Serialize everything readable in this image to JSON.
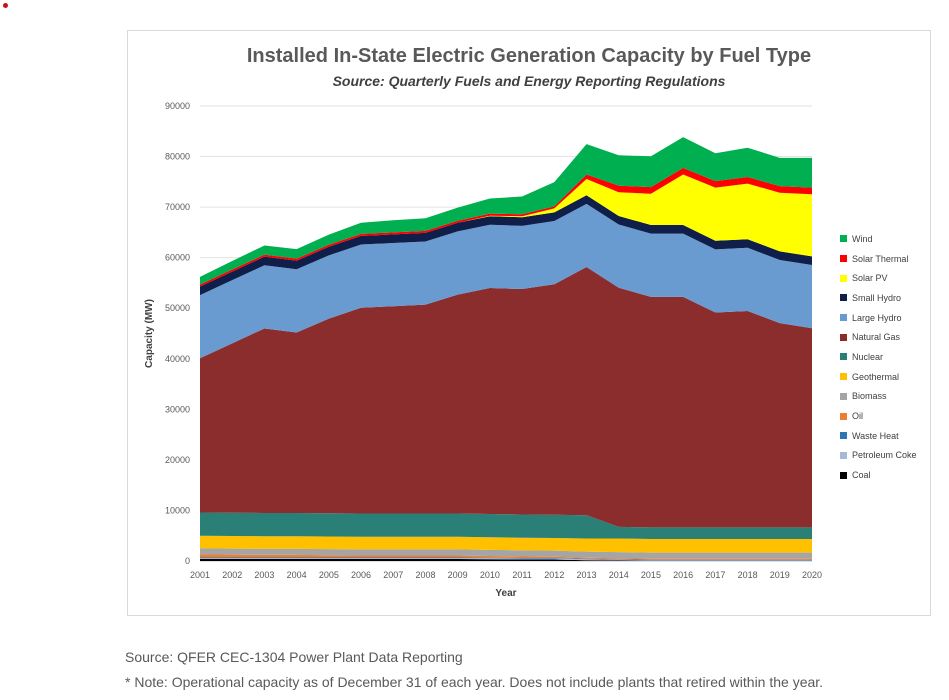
{
  "footer": {
    "source": "Source: QFER CEC-1304 Power Plant Data Reporting",
    "note": "* Note: Operational capacity as of December 31 of each year. Does not include plants that retired within the year."
  },
  "chart_data": {
    "type": "area",
    "stacked": true,
    "title": "Installed In-State Electric Generation Capacity by Fuel Type",
    "subtitle": "Source: Quarterly Fuels and Energy Reporting Regulations",
    "xlabel": "Year",
    "ylabel": "Capacity (MW)",
    "ylim": [
      0,
      90000
    ],
    "yticks": [
      0,
      10000,
      20000,
      30000,
      40000,
      50000,
      60000,
      70000,
      80000,
      90000
    ],
    "grid": "horizontal",
    "legend_position": "right",
    "x": [
      "2001",
      "2002",
      "2003",
      "2004",
      "2005",
      "2006",
      "2007",
      "2008",
      "2009",
      "2010",
      "2011",
      "2012",
      "2013",
      "2014",
      "2015",
      "2016",
      "2017",
      "2018",
      "2019",
      "2020"
    ],
    "series": [
      {
        "name": "Coal",
        "color": "#000000",
        "values": [
          400,
          400,
          400,
          400,
          400,
          400,
          400,
          400,
          400,
          350,
          300,
          300,
          150,
          100,
          50,
          50,
          50,
          50,
          50,
          50
        ]
      },
      {
        "name": "Petroleum Coke",
        "color": "#a6b8d8",
        "values": [
          200,
          200,
          200,
          200,
          200,
          200,
          200,
          200,
          200,
          200,
          200,
          200,
          200,
          150,
          100,
          100,
          100,
          100,
          100,
          100
        ]
      },
      {
        "name": "Waste Heat",
        "color": "#2e75b6",
        "values": [
          100,
          100,
          100,
          100,
          100,
          100,
          100,
          100,
          100,
          100,
          100,
          100,
          100,
          100,
          100,
          100,
          100,
          100,
          100,
          100
        ]
      },
      {
        "name": "Oil",
        "color": "#ed7d31",
        "values": [
          600,
          550,
          500,
          500,
          450,
          400,
          400,
          400,
          400,
          350,
          300,
          250,
          200,
          200,
          200,
          200,
          200,
          200,
          200,
          200
        ]
      },
      {
        "name": "Biomass",
        "color": "#a5a5a5",
        "values": [
          1200,
          1200,
          1200,
          1200,
          1200,
          1200,
          1200,
          1200,
          1200,
          1200,
          1200,
          1200,
          1200,
          1200,
          1200,
          1200,
          1200,
          1200,
          1200,
          1200
        ]
      },
      {
        "name": "Geothermal",
        "color": "#ffc000",
        "values": [
          2500,
          2500,
          2500,
          2500,
          2500,
          2500,
          2500,
          2500,
          2500,
          2500,
          2500,
          2500,
          2600,
          2700,
          2700,
          2700,
          2700,
          2700,
          2700,
          2700
        ]
      },
      {
        "name": "Nuclear",
        "color": "#2a8076",
        "values": [
          4600,
          4600,
          4600,
          4600,
          4600,
          4600,
          4600,
          4600,
          4600,
          4600,
          4600,
          4600,
          4600,
          2300,
          2300,
          2300,
          2300,
          2300,
          2300,
          2300
        ]
      },
      {
        "name": "Natural Gas",
        "color": "#8b2d2d",
        "values": [
          30500,
          33500,
          36500,
          35700,
          38500,
          40700,
          41000,
          41300,
          43300,
          44700,
          44600,
          45600,
          49100,
          47300,
          45600,
          45600,
          42500,
          42800,
          40400,
          39400
        ]
      },
      {
        "name": "Large Hydro",
        "color": "#6a9bd0",
        "values": [
          12500,
          12500,
          12500,
          12500,
          12500,
          12500,
          12500,
          12500,
          12500,
          12500,
          12500,
          12500,
          12500,
          12500,
          12500,
          12500,
          12500,
          12500,
          12500,
          12500
        ]
      },
      {
        "name": "Small Hydro",
        "color": "#0f1f4a",
        "values": [
          1700,
          1700,
          1700,
          1700,
          1700,
          1700,
          1700,
          1700,
          1700,
          1700,
          1700,
          1700,
          1700,
          1700,
          1700,
          1700,
          1700,
          1700,
          1700,
          1700
        ]
      },
      {
        "name": "Solar PV",
        "color": "#ffff00",
        "values": [
          0,
          0,
          0,
          0,
          0,
          0,
          0,
          0,
          0,
          100,
          200,
          800,
          3200,
          4700,
          6200,
          10000,
          10500,
          11000,
          11600,
          12300
        ]
      },
      {
        "name": "Solar Thermal",
        "color": "#ff0000",
        "values": [
          400,
          400,
          400,
          400,
          400,
          400,
          400,
          400,
          400,
          400,
          400,
          400,
          900,
          1300,
          1300,
          1300,
          1300,
          1300,
          1300,
          1300
        ]
      },
      {
        "name": "Wind",
        "color": "#00b050",
        "values": [
          1500,
          1700,
          1800,
          1900,
          2000,
          2200,
          2400,
          2500,
          2600,
          3000,
          3500,
          4800,
          6000,
          6000,
          6100,
          6100,
          5500,
          5800,
          5600,
          5900
        ]
      }
    ]
  }
}
